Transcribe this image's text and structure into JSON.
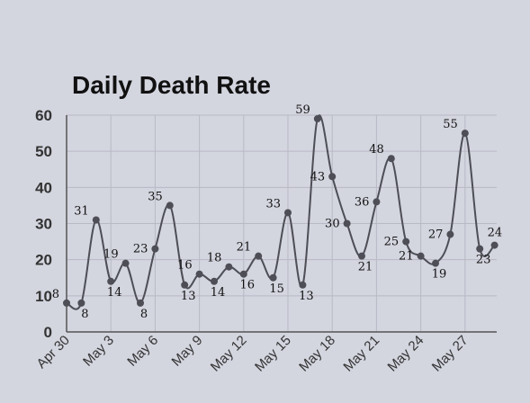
{
  "chart_data": {
    "type": "line",
    "title": "Daily Death Rate",
    "xlabel": "",
    "ylabel": "",
    "ylim": [
      0,
      60
    ],
    "yticks": [
      0,
      10,
      20,
      30,
      40,
      50,
      60
    ],
    "x": [
      "Apr 30",
      "May 1",
      "May 2",
      "May 3",
      "May 4",
      "May 5",
      "May 6",
      "May 7",
      "May 8",
      "May 9",
      "May 10",
      "May 11",
      "May 12",
      "May 13",
      "May 14",
      "May 15",
      "May 16",
      "May 17",
      "May 18",
      "May 19",
      "May 20",
      "May 21",
      "May 22",
      "May 23",
      "May 24",
      "May 25",
      "May 26",
      "May 27",
      "May 28",
      "May 29"
    ],
    "xtick_labels": [
      "Apr 30",
      "May 3",
      "May 6",
      "May 9",
      "May 12",
      "May 15",
      "May 18",
      "May 21",
      "May 24",
      "May 27"
    ],
    "values": [
      8,
      8,
      31,
      14,
      19,
      8,
      23,
      35,
      13,
      16,
      14,
      18,
      16,
      21,
      15,
      33,
      13,
      59,
      43,
      30,
      21,
      36,
      48,
      25,
      21,
      19,
      27,
      55,
      23,
      24
    ],
    "grid": true,
    "colors": {
      "line": "#4d4e56",
      "marker": "#4d4e56",
      "grid": "#b8b9c4",
      "background": "#d3d5df"
    }
  }
}
